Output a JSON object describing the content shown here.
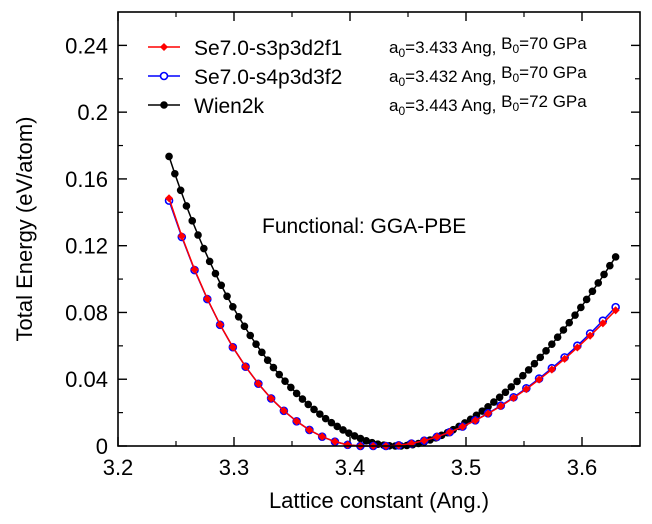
{
  "chart_data": {
    "type": "line",
    "title": "",
    "xlabel": "Lattice constant (Ang.)",
    "ylabel": "Total Energy (eV/atom)",
    "xlim": [
      3.2,
      3.65
    ],
    "ylim": [
      0,
      0.26
    ],
    "x_ticks": [
      "3.2",
      "3.3",
      "3.4",
      "3.5",
      "3.6"
    ],
    "y_ticks": [
      "0",
      "0.04",
      "0.08",
      "0.12",
      "0.16",
      "0.2",
      "0.24"
    ],
    "annotation": "Functional: GGA-PBE",
    "legend_position": "top-left",
    "series": [
      {
        "name": "Se7.0-s3p3d2f1",
        "color": "#ff0000",
        "marker": "diamond",
        "note": {
          "a_sym": "a",
          "a_sub": "0",
          "a_val": "=3.433 Ang, ",
          "b_sym": "B",
          "b_sub": "0",
          "b_val": "=70 GPa"
        },
        "x": [
          3.244,
          3.255,
          3.266,
          3.277,
          3.288,
          3.299,
          3.31,
          3.321,
          3.332,
          3.343,
          3.354,
          3.365,
          3.376,
          3.387,
          3.398,
          3.409,
          3.42,
          3.431,
          3.442,
          3.453,
          3.464,
          3.475,
          3.486,
          3.497,
          3.508,
          3.519,
          3.53,
          3.541,
          3.552,
          3.563,
          3.574,
          3.585,
          3.596,
          3.607,
          3.618,
          3.629
        ],
        "y": [
          0.1484,
          0.1257,
          0.1057,
          0.0882,
          0.0727,
          0.0592,
          0.0475,
          0.0373,
          0.0285,
          0.0211,
          0.0148,
          0.0096,
          0.0056,
          0.0026,
          0.0007,
          0.0,
          0.0,
          0.0,
          0.0004,
          0.0015,
          0.0032,
          0.0055,
          0.0083,
          0.0116,
          0.0153,
          0.0194,
          0.0239,
          0.0288,
          0.0341,
          0.0398,
          0.0458,
          0.0522,
          0.059,
          0.0661,
          0.0735,
          0.0813
        ]
      },
      {
        "name": "Se7.0-s4p3d3f2",
        "color": "#0000ff",
        "marker": "circle",
        "note": {
          "a_sym": "a",
          "a_sub": "0",
          "a_val": "=3.432 Ang, ",
          "b_sym": "B",
          "b_sub": "0",
          "b_val": "=70 GPa"
        },
        "x": [
          3.244,
          3.255,
          3.266,
          3.277,
          3.288,
          3.299,
          3.31,
          3.321,
          3.332,
          3.343,
          3.354,
          3.365,
          3.376,
          3.387,
          3.398,
          3.409,
          3.42,
          3.431,
          3.442,
          3.453,
          3.464,
          3.475,
          3.486,
          3.497,
          3.508,
          3.519,
          3.53,
          3.541,
          3.552,
          3.563,
          3.574,
          3.585,
          3.596,
          3.607,
          3.618,
          3.629
        ],
        "y": [
          0.147,
          0.1252,
          0.1054,
          0.088,
          0.0726,
          0.0592,
          0.0475,
          0.0373,
          0.0285,
          0.0211,
          0.0148,
          0.0096,
          0.0056,
          0.0026,
          0.0007,
          0.0,
          0.0,
          0.0,
          0.0004,
          0.0015,
          0.0032,
          0.0055,
          0.0083,
          0.0116,
          0.0154,
          0.0196,
          0.0242,
          0.0292,
          0.0346,
          0.0404,
          0.0466,
          0.0531,
          0.0601,
          0.0674,
          0.0751,
          0.0832
        ]
      },
      {
        "name": "Wien2k",
        "color": "#000000",
        "marker": "filled-circle",
        "note": {
          "a_sym": "a",
          "a_sub": "0",
          "a_val": "=3.443 Ang, ",
          "b_sym": "B",
          "b_sub": "0",
          "b_val": "=72 GPa"
        },
        "x": [
          3.244,
          3.249,
          3.254,
          3.259,
          3.264,
          3.269,
          3.274,
          3.279,
          3.284,
          3.289,
          3.294,
          3.299,
          3.304,
          3.309,
          3.314,
          3.319,
          3.324,
          3.329,
          3.334,
          3.339,
          3.344,
          3.349,
          3.354,
          3.359,
          3.364,
          3.369,
          3.374,
          3.379,
          3.384,
          3.389,
          3.394,
          3.399,
          3.404,
          3.409,
          3.414,
          3.419,
          3.424,
          3.429,
          3.434,
          3.439,
          3.444,
          3.449,
          3.454,
          3.459,
          3.464,
          3.469,
          3.474,
          3.479,
          3.484,
          3.489,
          3.494,
          3.499,
          3.504,
          3.509,
          3.514,
          3.519,
          3.524,
          3.529,
          3.534,
          3.539,
          3.544,
          3.549,
          3.554,
          3.559,
          3.564,
          3.569,
          3.574,
          3.579,
          3.584,
          3.589,
          3.594,
          3.599,
          3.604,
          3.609,
          3.614,
          3.619,
          3.624,
          3.629
        ],
        "y": [
          0.1735,
          0.1631,
          0.1532,
          0.1438,
          0.1349,
          0.1264,
          0.1183,
          0.1106,
          0.1033,
          0.0963,
          0.0897,
          0.0834,
          0.0774,
          0.0717,
          0.0662,
          0.061,
          0.0561,
          0.0514,
          0.047,
          0.0428,
          0.0388,
          0.0351,
          0.0315,
          0.0281,
          0.0249,
          0.0219,
          0.0191,
          0.0164,
          0.014,
          0.0117,
          0.0096,
          0.0077,
          0.006,
          0.0045,
          0.0031,
          0.002,
          0.0011,
          0.0005,
          0.0001,
          0.0,
          0.0,
          0.0003,
          0.0008,
          0.0015,
          0.0024,
          0.0036,
          0.0049,
          0.0064,
          0.008,
          0.0098,
          0.0117,
          0.0138,
          0.016,
          0.0184,
          0.0209,
          0.0235,
          0.0263,
          0.0292,
          0.0322,
          0.0354,
          0.0387,
          0.0421,
          0.0456,
          0.0493,
          0.0531,
          0.057,
          0.061,
          0.0652,
          0.0695,
          0.0739,
          0.0784,
          0.083,
          0.0878,
          0.0927,
          0.0977,
          0.1028,
          0.108,
          0.1133
        ]
      }
    ]
  }
}
